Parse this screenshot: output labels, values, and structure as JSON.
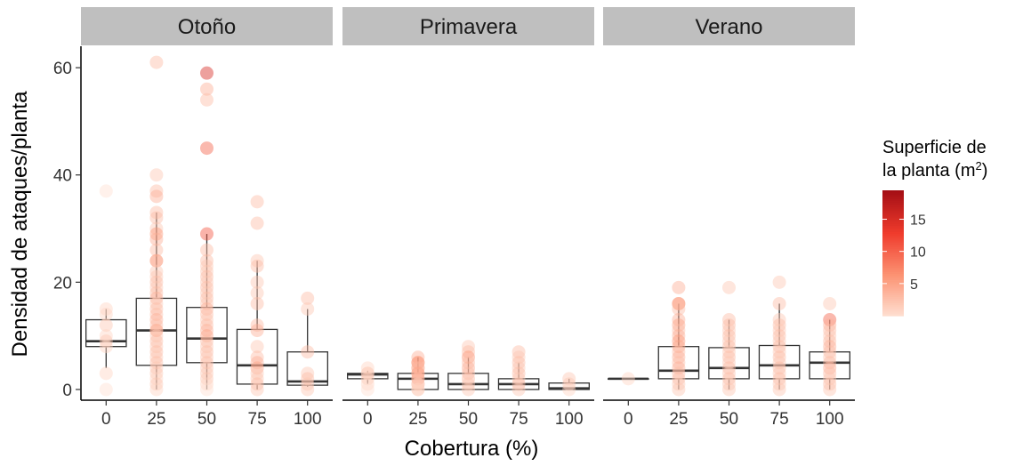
{
  "chart_data": {
    "type": "boxplot",
    "xlabel": "Cobertura (%)",
    "ylabel": "Densidad de ataques/planta",
    "categories": [
      "0",
      "25",
      "50",
      "75",
      "100"
    ],
    "ylim": [
      -2,
      64
    ],
    "yticks": [
      0,
      20,
      40,
      60
    ],
    "grid": false,
    "legend": {
      "title_line1": "Superficie de",
      "title_line2_prefix": "la planta (m",
      "title_line2_sup": "2",
      "title_line2_suffix": ")",
      "placement": "right",
      "range": [
        0,
        19.5
      ],
      "ticks": [
        5,
        10,
        15
      ],
      "colors": [
        "#fee0d2",
        "#fc9272",
        "#ef3b2c",
        "#a50f15"
      ]
    },
    "panels": [
      {
        "name": "Otoño",
        "boxes": [
          {
            "category": "0",
            "min": 4,
            "q1": 8,
            "median": 9,
            "q3": 13,
            "max": 15
          },
          {
            "category": "25",
            "min": 0,
            "q1": 4.5,
            "median": 11,
            "q3": 17,
            "max": 33
          },
          {
            "category": "50",
            "min": 0,
            "q1": 5,
            "median": 9.5,
            "q3": 15.3,
            "max": 29
          },
          {
            "category": "75",
            "min": 0,
            "q1": 1,
            "median": 4.5,
            "q3": 11.2,
            "max": 24
          },
          {
            "category": "100",
            "min": 0.5,
            "q1": 0.8,
            "median": 1.5,
            "q3": 7,
            "max": 15
          }
        ],
        "points": [
          {
            "x": "0",
            "values": [
              37,
              15,
              14,
              12,
              10,
              9,
              8,
              3,
              0
            ],
            "sizes": [
              0,
              1,
              1,
              2,
              1,
              2,
              1,
              1,
              0
            ]
          },
          {
            "x": "25",
            "values": [
              61,
              40,
              37,
              36,
              33,
              32,
              30,
              29,
              28,
              26,
              24,
              24,
              22,
              21,
              20,
              19,
              18,
              17,
              16,
              15,
              14,
              13,
              12,
              11,
              11,
              10,
              9,
              8,
              7,
              6,
              5,
              4,
              3,
              2,
              1,
              0
            ],
            "sizes": [
              3,
              2,
              3,
              4,
              3,
              3,
              2,
              6,
              4,
              3,
              5,
              4,
              2,
              2,
              3,
              2,
              3,
              4,
              2,
              3,
              3,
              4,
              3,
              5,
              3,
              2,
              3,
              2,
              3,
              2,
              3,
              2,
              2,
              1,
              2,
              1
            ]
          },
          {
            "x": "50",
            "values": [
              59,
              56,
              54,
              45,
              29,
              26,
              24,
              23,
              22,
              21,
              20,
              19,
              18,
              17,
              16,
              15,
              14,
              13,
              12,
              11,
              10,
              9,
              8,
              7,
              6,
              5,
              4,
              3,
              2,
              1,
              0
            ],
            "sizes": [
              15,
              4,
              3,
              10,
              11,
              3,
              3,
              2,
              2,
              3,
              2,
              3,
              2,
              3,
              2,
              4,
              3,
              2,
              3,
              4,
              5,
              3,
              2,
              3,
              2,
              3,
              2,
              2,
              2,
              1,
              0
            ]
          },
          {
            "x": "75",
            "values": [
              35,
              31,
              24,
              23,
              20,
              18,
              16,
              12,
              11,
              8,
              6,
              5,
              4,
              3,
              2,
              1,
              0
            ],
            "sizes": [
              3,
              3,
              2,
              3,
              2,
              2,
              3,
              3,
              4,
              2,
              3,
              4,
              5,
              2,
              2,
              3,
              2
            ]
          },
          {
            "x": "100",
            "values": [
              17,
              15,
              7,
              3,
              2,
              1,
              0
            ],
            "sizes": [
              3,
              2,
              3,
              2,
              3,
              2,
              2
            ]
          }
        ]
      },
      {
        "name": "Primavera",
        "boxes": [
          {
            "category": "0",
            "min": 1,
            "q1": 2,
            "median": 2.8,
            "q3": 3,
            "max": 3.5
          },
          {
            "category": "25",
            "min": 0,
            "q1": 0,
            "median": 2,
            "q3": 3,
            "max": 6
          },
          {
            "category": "50",
            "min": 0,
            "q1": 0,
            "median": 1,
            "q3": 3,
            "max": 6
          },
          {
            "category": "75",
            "min": 0,
            "q1": 0,
            "median": 1,
            "q3": 2,
            "max": 5
          },
          {
            "category": "100",
            "min": 0,
            "q1": 0,
            "median": 0.2,
            "q3": 1.2,
            "max": 2
          }
        ],
        "points": [
          {
            "x": "0",
            "values": [
              4,
              3,
              3,
              2,
              1,
              0
            ],
            "sizes": [
              1,
              2,
              1,
              2,
              1,
              0
            ]
          },
          {
            "x": "25",
            "values": [
              6,
              5,
              5,
              4,
              4,
              3,
              3,
              2,
              2,
              1,
              1,
              0,
              0
            ],
            "sizes": [
              4,
              5,
              6,
              5,
              3,
              4,
              5,
              3,
              4,
              3,
              2,
              2,
              1
            ]
          },
          {
            "x": "50",
            "values": [
              8,
              7,
              6,
              5,
              4,
              3,
              2,
              1,
              0
            ],
            "sizes": [
              2,
              3,
              6,
              3,
              4,
              3,
              3,
              2,
              2
            ]
          },
          {
            "x": "75",
            "values": [
              7,
              6,
              5,
              4,
              3,
              2,
              1,
              0
            ],
            "sizes": [
              3,
              2,
              3,
              2,
              3,
              2,
              3,
              2
            ]
          },
          {
            "x": "100",
            "values": [
              2,
              1,
              0
            ],
            "sizes": [
              2,
              2,
              1
            ]
          }
        ]
      },
      {
        "name": "Verano",
        "boxes": [
          {
            "category": "0",
            "min": 2,
            "q1": 2,
            "median": 2,
            "q3": 2,
            "max": 2
          },
          {
            "category": "25",
            "min": 0,
            "q1": 2,
            "median": 3.5,
            "q3": 8,
            "max": 16
          },
          {
            "category": "50",
            "min": 0,
            "q1": 2,
            "median": 4,
            "q3": 7.8,
            "max": 13
          },
          {
            "category": "75",
            "min": 0,
            "q1": 2,
            "median": 4.5,
            "q3": 8.2,
            "max": 16
          },
          {
            "category": "100",
            "min": 0,
            "q1": 2,
            "median": 5,
            "q3": 7,
            "max": 13
          }
        ],
        "points": [
          {
            "x": "0",
            "values": [
              2
            ],
            "sizes": [
              1
            ]
          },
          {
            "x": "25",
            "values": [
              19,
              16,
              16,
              15,
              13,
              12,
              11,
              10,
              9,
              8,
              7,
              6,
              5,
              4,
              3,
              2,
              1,
              0
            ],
            "sizes": [
              4,
              5,
              6,
              3,
              4,
              5,
              3,
              4,
              6,
              5,
              3,
              4,
              3,
              4,
              3,
              3,
              2,
              2
            ]
          },
          {
            "x": "50",
            "values": [
              19,
              13,
              12,
              11,
              10,
              9,
              8,
              7,
              6,
              5,
              4,
              3,
              2,
              1,
              0
            ],
            "sizes": [
              2,
              3,
              3,
              2,
              3,
              2,
              3,
              2,
              3,
              2,
              3,
              2,
              3,
              2,
              2
            ]
          },
          {
            "x": "75",
            "values": [
              20,
              16,
              13,
              12,
              11,
              10,
              9,
              8,
              7,
              6,
              5,
              4,
              3,
              2,
              1,
              0
            ],
            "sizes": [
              2,
              3,
              2,
              3,
              2,
              3,
              2,
              3,
              2,
              3,
              2,
              3,
              2,
              3,
              2,
              2
            ]
          },
          {
            "x": "100",
            "values": [
              16,
              13,
              12,
              11,
              10,
              9,
              8,
              7,
              6,
              5,
              4,
              3,
              2,
              1,
              0
            ],
            "sizes": [
              2,
              10,
              4,
              3,
              2,
              3,
              4,
              3,
              2,
              3,
              4,
              3,
              2,
              3,
              2
            ]
          }
        ]
      }
    ]
  }
}
